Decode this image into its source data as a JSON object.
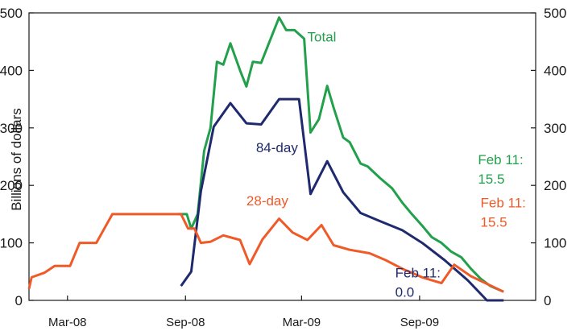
{
  "chart_data": {
    "type": "line",
    "ylabel": "Billions of dollars",
    "ylim": [
      0,
      500
    ],
    "yticks": [
      0,
      100,
      200,
      300,
      400,
      500
    ],
    "xlim": [
      "2008-01-01",
      "2010-03-01"
    ],
    "xticks": [
      {
        "date": "2008-03-01",
        "label": "Mar-08"
      },
      {
        "date": "2008-09-01",
        "label": "Sep-08"
      },
      {
        "date": "2009-03-01",
        "label": "Mar-09"
      },
      {
        "date": "2009-09-01",
        "label": "Sep-09"
      }
    ],
    "grid": false,
    "series": [
      {
        "name": "Total",
        "color": "#22a04b",
        "points": [
          [
            "2008-08-20",
            150
          ],
          [
            "2008-09-03",
            150
          ],
          [
            "2008-09-10",
            125
          ],
          [
            "2008-09-20",
            150
          ],
          [
            "2008-09-30",
            260
          ],
          [
            "2008-10-10",
            300
          ],
          [
            "2008-10-20",
            415
          ],
          [
            "2008-10-30",
            410
          ],
          [
            "2008-11-10",
            447
          ],
          [
            "2008-11-25",
            400
          ],
          [
            "2008-12-05",
            372
          ],
          [
            "2008-12-15",
            415
          ],
          [
            "2008-12-28",
            413
          ],
          [
            "2009-01-10",
            450
          ],
          [
            "2009-01-25",
            492
          ],
          [
            "2009-02-05",
            470
          ],
          [
            "2009-02-18",
            470
          ],
          [
            "2009-03-05",
            455
          ],
          [
            "2009-03-15",
            292
          ],
          [
            "2009-03-28",
            315
          ],
          [
            "2009-04-10",
            373
          ],
          [
            "2009-04-20",
            335
          ],
          [
            "2009-05-05",
            283
          ],
          [
            "2009-05-15",
            275
          ],
          [
            "2009-06-01",
            238
          ],
          [
            "2009-06-12",
            233
          ],
          [
            "2009-07-01",
            213
          ],
          [
            "2009-07-20",
            195
          ],
          [
            "2009-08-05",
            170
          ],
          [
            "2009-08-20",
            150
          ],
          [
            "2009-09-05",
            130
          ],
          [
            "2009-09-20",
            110
          ],
          [
            "2009-10-05",
            100
          ],
          [
            "2009-10-20",
            85
          ],
          [
            "2009-11-05",
            75
          ],
          [
            "2009-11-20",
            55
          ],
          [
            "2009-12-05",
            38
          ],
          [
            "2009-12-20",
            25
          ],
          [
            "2010-01-10",
            15
          ]
        ]
      },
      {
        "name": "84-day",
        "color": "#1f2a6e",
        "points": [
          [
            "2008-08-25",
            25
          ],
          [
            "2008-09-10",
            50
          ],
          [
            "2008-09-25",
            190
          ],
          [
            "2008-10-15",
            302
          ],
          [
            "2008-11-10",
            343
          ],
          [
            "2008-12-05",
            308
          ],
          [
            "2008-12-28",
            306
          ],
          [
            "2009-01-25",
            350
          ],
          [
            "2009-02-25",
            350
          ],
          [
            "2009-03-15",
            185
          ],
          [
            "2009-04-10",
            242
          ],
          [
            "2009-05-05",
            188
          ],
          [
            "2009-06-01",
            152
          ],
          [
            "2009-07-01",
            138
          ],
          [
            "2009-08-05",
            122
          ],
          [
            "2009-09-05",
            100
          ],
          [
            "2009-10-10",
            70
          ],
          [
            "2009-11-15",
            35
          ],
          [
            "2009-12-15",
            0
          ],
          [
            "2010-01-10",
            0
          ]
        ]
      },
      {
        "name": "28-day",
        "color": "#ef5a28",
        "points": [
          [
            "2008-01-01",
            20
          ],
          [
            "2008-01-05",
            40
          ],
          [
            "2008-01-25",
            48
          ],
          [
            "2008-02-10",
            60
          ],
          [
            "2008-03-05",
            60
          ],
          [
            "2008-03-20",
            100
          ],
          [
            "2008-04-15",
            100
          ],
          [
            "2008-05-10",
            150
          ],
          [
            "2008-08-25",
            150
          ],
          [
            "2008-09-05",
            125
          ],
          [
            "2008-09-15",
            125
          ],
          [
            "2008-09-25",
            100
          ],
          [
            "2008-10-10",
            102
          ],
          [
            "2008-10-30",
            113
          ],
          [
            "2008-11-25",
            105
          ],
          [
            "2008-12-10",
            63
          ],
          [
            "2008-12-30",
            106
          ],
          [
            "2009-01-25",
            142
          ],
          [
            "2009-02-15",
            118
          ],
          [
            "2009-03-10",
            105
          ],
          [
            "2009-04-01",
            131
          ],
          [
            "2009-04-20",
            96
          ],
          [
            "2009-05-15",
            88
          ],
          [
            "2009-06-15",
            82
          ],
          [
            "2009-07-10",
            70
          ],
          [
            "2009-08-05",
            55
          ],
          [
            "2009-09-05",
            40
          ],
          [
            "2009-10-05",
            30
          ],
          [
            "2009-10-25",
            62
          ],
          [
            "2009-11-20",
            42
          ],
          [
            "2010-01-10",
            15
          ]
        ]
      }
    ],
    "annotations": [
      {
        "id": "total",
        "series": "Total",
        "lines": [
          "Total"
        ],
        "anchor": [
          "2009-03-10",
          450
        ]
      },
      {
        "id": "day84",
        "series": "84-day",
        "lines": [
          "84-day"
        ],
        "anchor": [
          "2008-12-20",
          258
        ]
      },
      {
        "id": "day28",
        "series": "28-day",
        "lines": [
          "28-day"
        ],
        "anchor": [
          "2008-12-05",
          165
        ]
      },
      {
        "id": "febTotal",
        "series": "Total",
        "lines": [
          "Feb 11:",
          "15.5"
        ],
        "anchor": [
          "2009-12-01",
          237
        ]
      },
      {
        "id": "feb28",
        "series": "28-day",
        "lines": [
          "Feb 11:",
          "15.5"
        ],
        "anchor": [
          "2009-12-05",
          162
        ]
      },
      {
        "id": "feb84",
        "series": "84-day",
        "lines": [
          "Feb 11:",
          "0.0"
        ],
        "anchor": [
          "2009-07-25",
          40
        ]
      }
    ]
  }
}
